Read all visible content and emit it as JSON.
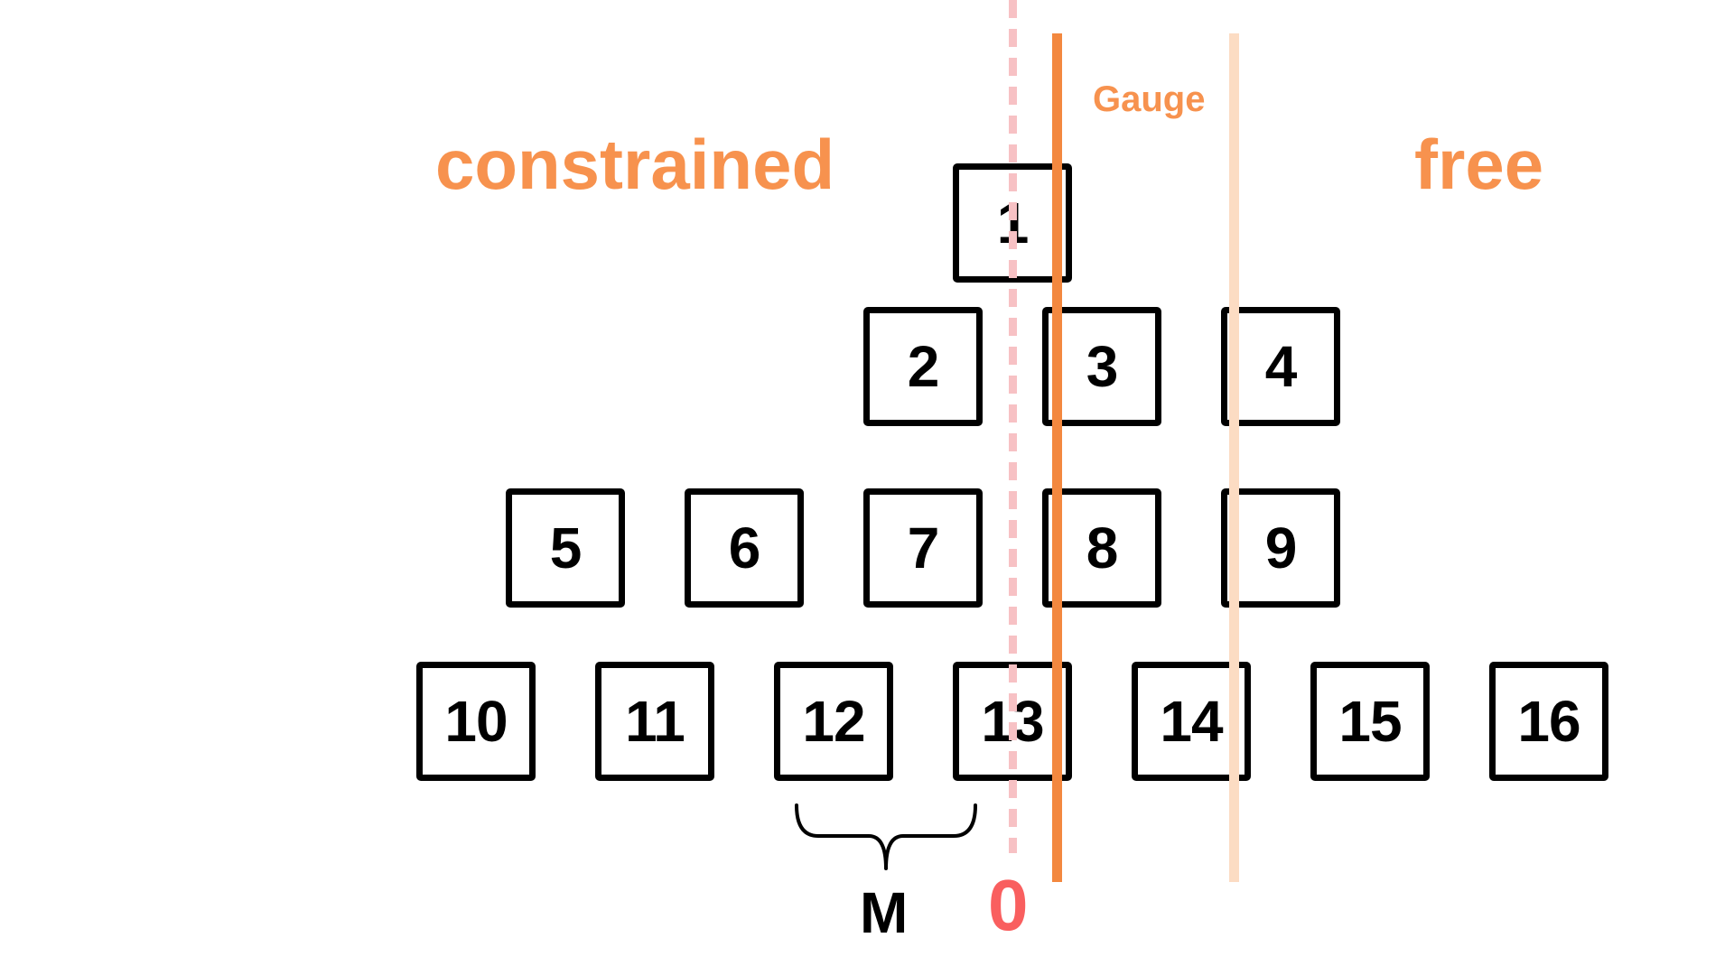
{
  "diagram": {
    "regions": {
      "constrained": "constrained",
      "free": "free",
      "gauge": "Gauge"
    },
    "boxes": [
      "1",
      "2",
      "3",
      "4",
      "5",
      "6",
      "7",
      "8",
      "9",
      "10",
      "11",
      "12",
      "13",
      "14",
      "15",
      "16"
    ],
    "markers": {
      "brace_label": "M",
      "origin_label": "0"
    },
    "colors": {
      "accent_orange": "#f7924e",
      "gauge_line": "#f3883f",
      "free_line": "#fcdcc3",
      "dashed_line": "#f7c1c4",
      "origin_red": "#f95f5f",
      "box_border": "#000000"
    }
  }
}
